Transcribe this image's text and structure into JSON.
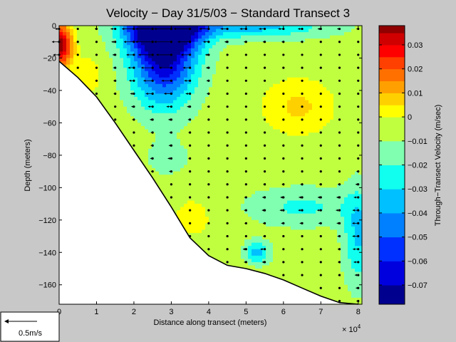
{
  "chart_data": {
    "type": "heatmap",
    "title": "Velocity − Day 31/5/03 − Standard Transect 3",
    "xlabel": "Distance along transect (meters)",
    "ylabel": "Depth (meters)",
    "x_exponent_label": "× 10",
    "x_exponent_power": "4",
    "xlim": [
      0,
      8.1
    ],
    "ylim": [
      -172,
      0
    ],
    "x_ticks": [
      {
        "value": 0,
        "label": "0"
      },
      {
        "value": 1,
        "label": "1"
      },
      {
        "value": 2,
        "label": "2"
      },
      {
        "value": 3,
        "label": "3"
      },
      {
        "value": 4,
        "label": "4"
      },
      {
        "value": 5,
        "label": "5"
      },
      {
        "value": 6,
        "label": "6"
      },
      {
        "value": 7,
        "label": "7"
      },
      {
        "value": 8,
        "label": "8"
      }
    ],
    "y_ticks": [
      {
        "value": 0,
        "label": "0"
      },
      {
        "value": -20,
        "label": "−20"
      },
      {
        "value": -40,
        "label": "−40"
      },
      {
        "value": -60,
        "label": "−60"
      },
      {
        "value": -80,
        "label": "−80"
      },
      {
        "value": -100,
        "label": "−100"
      },
      {
        "value": -120,
        "label": "−120"
      },
      {
        "value": -140,
        "label": "−140"
      },
      {
        "value": -160,
        "label": "−160"
      }
    ],
    "bathymetry": [
      [
        0,
        -22
      ],
      [
        0.5,
        -32
      ],
      [
        1,
        -44
      ],
      [
        1.5,
        -60
      ],
      [
        2,
        -77
      ],
      [
        2.5,
        -94
      ],
      [
        3,
        -112
      ],
      [
        3.5,
        -131
      ],
      [
        4,
        -142
      ],
      [
        4.5,
        -148
      ],
      [
        5,
        -150
      ],
      [
        5.5,
        -153
      ],
      [
        6,
        -157
      ],
      [
        6.5,
        -162
      ],
      [
        7,
        -167
      ],
      [
        7.5,
        -171
      ],
      [
        8,
        -172
      ]
    ],
    "station_x": [
      0,
      0.5,
      1,
      1.5,
      2,
      2.5,
      3,
      3.5,
      4,
      4.5,
      5,
      5.5,
      6,
      6.5,
      7,
      7.5,
      8
    ],
    "colorbar": {
      "label": "Through−Transect Velocity (m/sec)",
      "range": [
        -0.078,
        0.038
      ],
      "ticks": [
        {
          "value": 0.03,
          "label": "0.03"
        },
        {
          "value": 0.02,
          "label": "0.02"
        },
        {
          "value": 0.01,
          "label": "0.01"
        },
        {
          "value": 0,
          "label": "0"
        },
        {
          "value": -0.01,
          "label": "−0.01"
        },
        {
          "value": -0.02,
          "label": "−0.02"
        },
        {
          "value": -0.03,
          "label": "−0.03"
        },
        {
          "value": -0.04,
          "label": "−0.04"
        },
        {
          "value": -0.05,
          "label": "−0.05"
        },
        {
          "value": -0.06,
          "label": "−0.06"
        },
        {
          "value": -0.07,
          "label": "−0.07"
        }
      ],
      "levels": [
        {
          "min": -0.078,
          "color": "#00008f"
        },
        {
          "min": -0.07,
          "color": "#0000df"
        },
        {
          "min": -0.06,
          "color": "#0030ff"
        },
        {
          "min": -0.05,
          "color": "#0080ff"
        },
        {
          "min": -0.04,
          "color": "#00c0ff"
        },
        {
          "min": -0.03,
          "color": "#10ffef"
        },
        {
          "min": -0.02,
          "color": "#80ffb0"
        },
        {
          "min": -0.01,
          "color": "#c0ff40"
        },
        {
          "min": 0,
          "color": "#ffff00"
        },
        {
          "min": 0.005,
          "color": "#ffd000"
        },
        {
          "min": 0.01,
          "color": "#ffa000"
        },
        {
          "min": 0.015,
          "color": "#ff7000"
        },
        {
          "min": 0.02,
          "color": "#ff4000"
        },
        {
          "min": 0.025,
          "color": "#ff0000"
        },
        {
          "min": 0.03,
          "color": "#d00000"
        },
        {
          "min": 0.035,
          "color": "#900000"
        }
      ]
    },
    "scale_arrow": {
      "label": "0.5m/s",
      "speed": 0.5
    }
  }
}
